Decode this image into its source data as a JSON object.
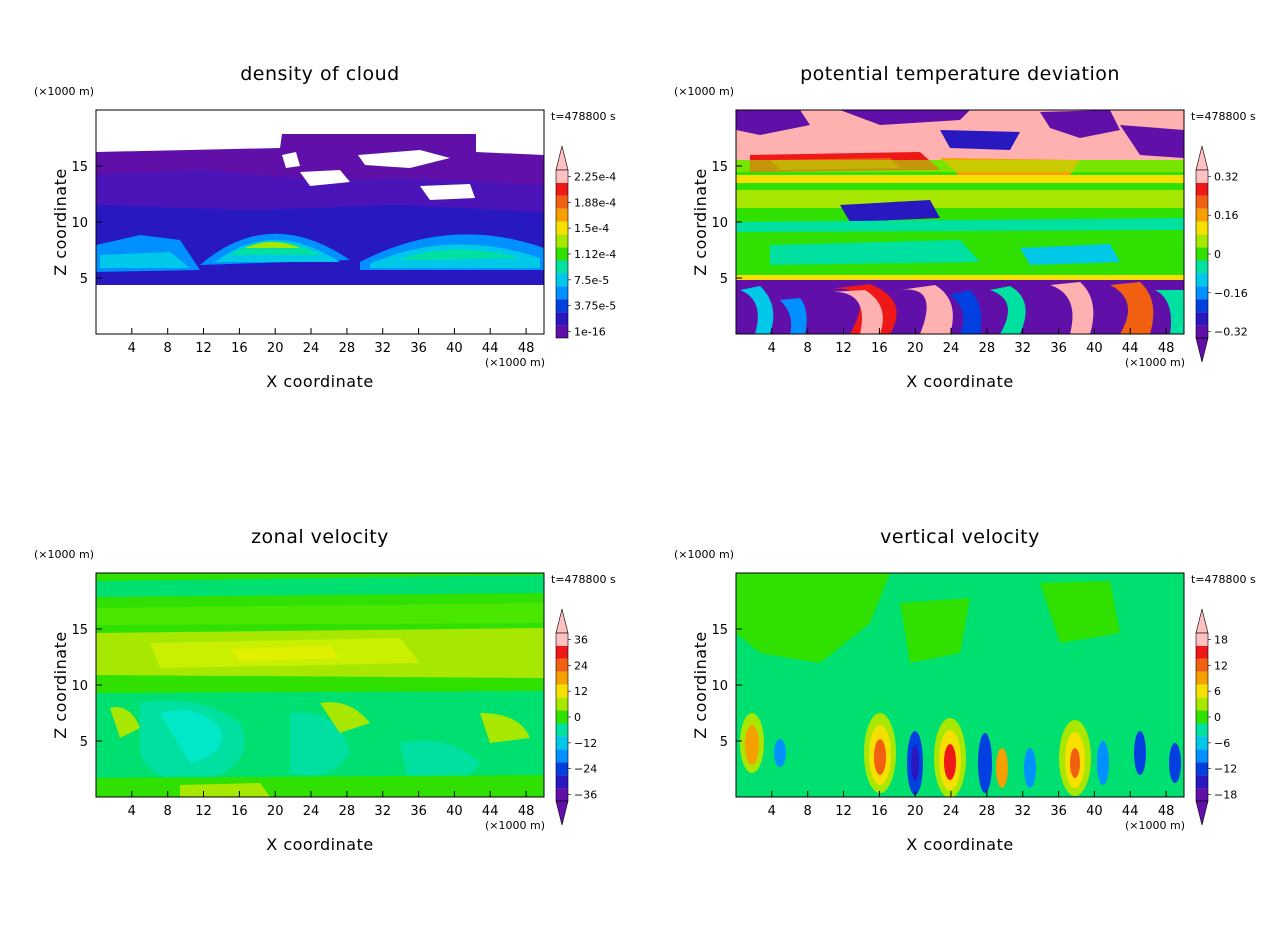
{
  "chart_data": [
    {
      "type": "heatmap",
      "title": "density of cloud",
      "time_label": "t=478800 s",
      "xlabel": "X coordinate",
      "ylabel": "Z coordinate",
      "x_unit": "(×1000 m)",
      "y_unit": "(×1000 m)",
      "xlim": [
        0,
        50
      ],
      "ylim": [
        0,
        20
      ],
      "xticks": [
        "4",
        "8",
        "12",
        "16",
        "20",
        "24",
        "28",
        "32",
        "36",
        "40",
        "44",
        "48"
      ],
      "yticks": [
        "5",
        "10",
        "15"
      ],
      "colorbar": {
        "labels": [
          "2.25e-4",
          "1.88e-4",
          "1.5e-4",
          "1.12e-4",
          "7.5e-5",
          "3.75e-5",
          "1e-16"
        ],
        "colors": [
          "#ffc0c0",
          "#ee1818",
          "#f06010",
          "#f5a000",
          "#f5e000",
          "#a8e800",
          "#30e000",
          "#00e0a0",
          "#00c8e8",
          "#0090ff",
          "#0040e0",
          "#2818c0",
          "#6010a8"
        ],
        "arrow_top": true,
        "arrow_bottom": false
      }
    },
    {
      "type": "heatmap",
      "title": "potential temperature deviation",
      "time_label": "t=478800 s",
      "xlabel": "X coordinate",
      "ylabel": "Z coordinate",
      "x_unit": "(×1000 m)",
      "y_unit": "(×1000 m)",
      "xlim": [
        0,
        50
      ],
      "ylim": [
        0,
        20
      ],
      "xticks": [
        "4",
        "8",
        "12",
        "16",
        "20",
        "24",
        "28",
        "32",
        "36",
        "40",
        "44",
        "48"
      ],
      "yticks": [
        "5",
        "10",
        "15"
      ],
      "colorbar": {
        "labels": [
          "0.32",
          "0.16",
          "0",
          "−0.16",
          "−0.32"
        ],
        "colors": [
          "#ffc0c0",
          "#ee1818",
          "#f06010",
          "#f5a000",
          "#f5e000",
          "#a8e800",
          "#30e000",
          "#00e0a0",
          "#00c8e8",
          "#0090ff",
          "#0040e0",
          "#2818c0",
          "#6010a8"
        ],
        "arrow_top": true,
        "arrow_bottom": true
      }
    },
    {
      "type": "heatmap",
      "title": "zonal velocity",
      "time_label": "t=478800 s",
      "xlabel": "X coordinate",
      "ylabel": "Z coordinate",
      "x_unit": "(×1000 m)",
      "y_unit": "(×1000 m)",
      "xlim": [
        0,
        50
      ],
      "ylim": [
        0,
        20
      ],
      "xticks": [
        "4",
        "8",
        "12",
        "16",
        "20",
        "24",
        "28",
        "32",
        "36",
        "40",
        "44",
        "48"
      ],
      "yticks": [
        "5",
        "10",
        "15"
      ],
      "colorbar": {
        "labels": [
          "36",
          "24",
          "12",
          "0",
          "−12",
          "−24",
          "−36"
        ],
        "colors": [
          "#ffc0c0",
          "#ee1818",
          "#f06010",
          "#f5a000",
          "#f5e000",
          "#a8e800",
          "#30e000",
          "#00e0a0",
          "#00c8e8",
          "#0090ff",
          "#0040e0",
          "#2818c0",
          "#6010a8"
        ],
        "arrow_top": true,
        "arrow_bottom": true
      }
    },
    {
      "type": "heatmap",
      "title": "vertical velocity",
      "time_label": "t=478800 s",
      "xlabel": "X coordinate",
      "ylabel": "Z coordinate",
      "x_unit": "(×1000 m)",
      "y_unit": "(×1000 m)",
      "xlim": [
        0,
        50
      ],
      "ylim": [
        0,
        20
      ],
      "xticks": [
        "4",
        "8",
        "12",
        "16",
        "20",
        "24",
        "28",
        "32",
        "36",
        "40",
        "44",
        "48"
      ],
      "yticks": [
        "5",
        "10",
        "15"
      ],
      "colorbar": {
        "labels": [
          "18",
          "12",
          "6",
          "0",
          "−6",
          "−12",
          "−18"
        ],
        "colors": [
          "#ffc0c0",
          "#ee1818",
          "#f06010",
          "#f5a000",
          "#f5e000",
          "#a8e800",
          "#30e000",
          "#00e0a0",
          "#00c8e8",
          "#0090ff",
          "#0040e0",
          "#2818c0",
          "#6010a8"
        ],
        "arrow_top": true,
        "arrow_bottom": true
      }
    }
  ]
}
